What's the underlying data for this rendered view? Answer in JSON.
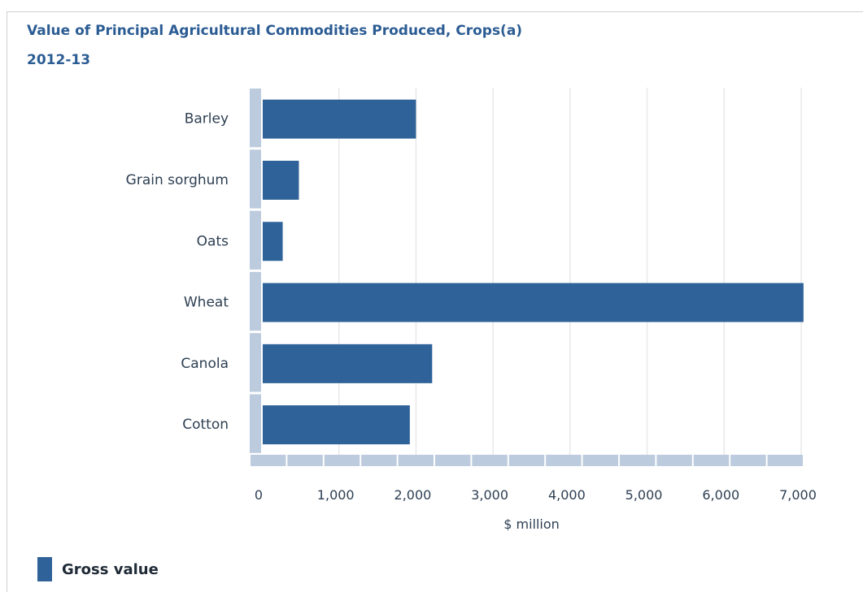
{
  "chart_data": {
    "type": "bar",
    "orientation": "horizontal",
    "title": "Value of Principal Agricultural Commodities Produced, Crops(a)",
    "subtitle": "2012-13",
    "categories": [
      "Barley",
      "Grain sorghum",
      "Oats",
      "Wheat",
      "Canola",
      "Cotton"
    ],
    "series": [
      {
        "name": "Gross value",
        "values": [
          2000,
          480,
          270,
          7030,
          2210,
          1920
        ]
      }
    ],
    "xlabel": "$ million",
    "ylabel": "",
    "xlim": [
      0,
      7000
    ],
    "ticks": [
      0,
      1000,
      2000,
      3000,
      4000,
      5000,
      6000,
      7000
    ],
    "tick_labels": [
      "0",
      "1,000",
      "2,000",
      "3,000",
      "4,000",
      "5,000",
      "6,000",
      "7,000"
    ],
    "grid": true,
    "legend_position": "bottom-left",
    "colors": {
      "bar": "#2e6298",
      "title": "#2b5c93",
      "scroll_track": "#bccbdd",
      "grid": "#e8e8e8",
      "text": "#2d3f52"
    }
  }
}
